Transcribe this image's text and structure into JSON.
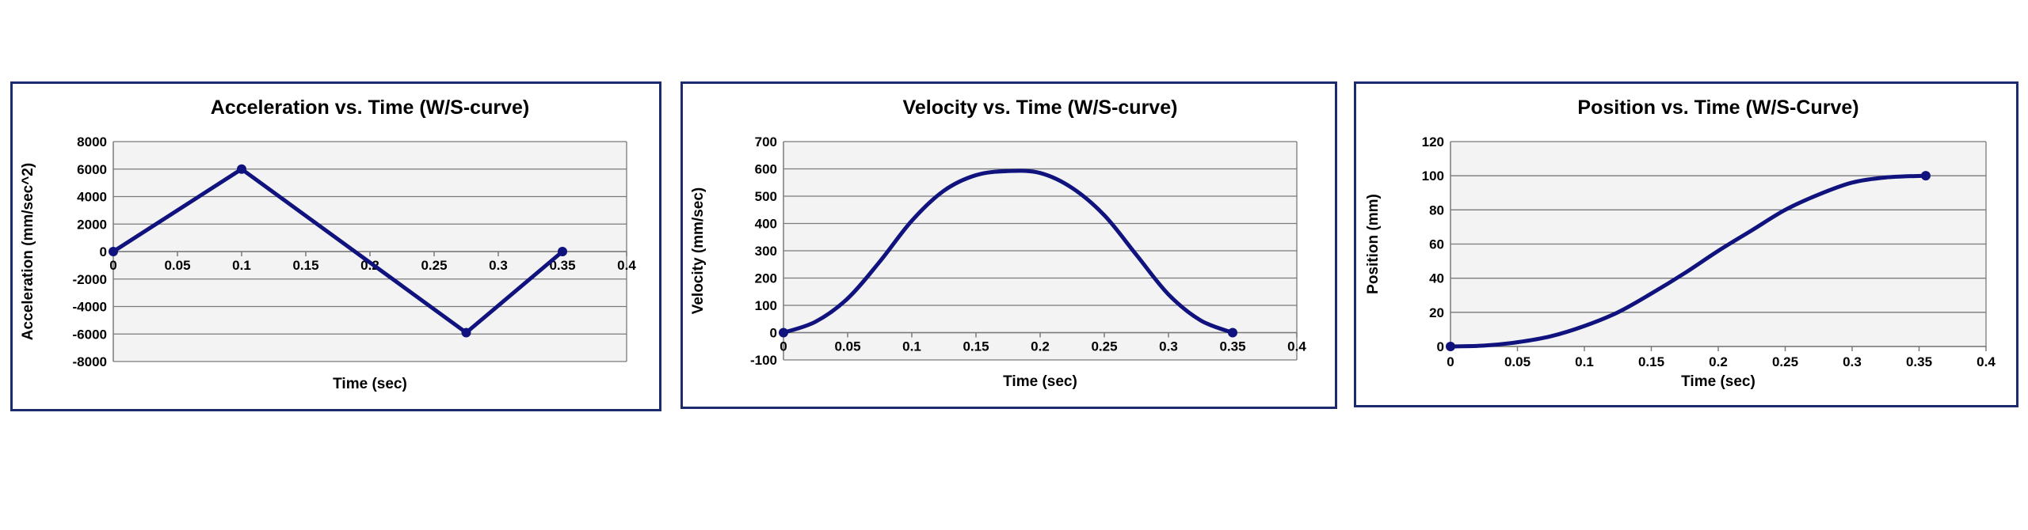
{
  "colors": {
    "series": "#10127e",
    "frame": "#1c2a6e",
    "plot_background": "#f3f3f3",
    "gridline": "#7a7a7a"
  },
  "chart_data": [
    {
      "type": "line",
      "title": "Acceleration vs. Time (W/S-curve)",
      "xlabel": "Time (sec)",
      "ylabel": "Acceleration (mm/sec^2)",
      "xlim": [
        0,
        0.4
      ],
      "ylim": [
        -8000,
        8000
      ],
      "xticks": [
        0,
        0.05,
        0.1,
        0.15,
        0.2,
        0.25,
        0.3,
        0.35,
        0.4
      ],
      "yticks": [
        -8000,
        -6000,
        -4000,
        -2000,
        0,
        2000,
        4000,
        6000,
        8000
      ],
      "xtick_labels": [
        "0",
        "0.05",
        "0.1",
        "0.15",
        "0.2",
        "0.25",
        "0.3",
        "0.35",
        "0.4"
      ],
      "ytick_labels": [
        "-8000",
        "-6000",
        "-4000",
        "-2000",
        "0",
        "2000",
        "4000",
        "6000",
        "8000"
      ],
      "x_tick_position": "at-zero-line",
      "grid": true,
      "legend": "none",
      "series": [
        {
          "x": [
            0,
            0.1,
            0.275,
            0.35
          ],
          "y": [
            0,
            6000,
            -5900,
            0
          ],
          "markers": [
            0,
            1,
            2,
            3
          ]
        }
      ]
    },
    {
      "type": "line",
      "title": "Velocity vs. Time (W/S-curve)",
      "xlabel": "Time (sec)",
      "ylabel": "Velocity (mm/sec)",
      "xlim": [
        0,
        0.4
      ],
      "ylim": [
        -100,
        700
      ],
      "xticks": [
        0,
        0.05,
        0.1,
        0.15,
        0.2,
        0.25,
        0.3,
        0.35,
        0.4
      ],
      "yticks": [
        -100,
        0,
        100,
        200,
        300,
        400,
        500,
        600,
        700
      ],
      "xtick_labels": [
        "0",
        "0.05",
        "0.1",
        "0.15",
        "0.2",
        "0.25",
        "0.3",
        "0.35",
        "0.4"
      ],
      "ytick_labels": [
        "-100",
        "0",
        "100",
        "200",
        "300",
        "400",
        "500",
        "600",
        "700"
      ],
      "x_tick_position": "at-zero-line",
      "grid": true,
      "legend": "none",
      "series": [
        {
          "x": [
            0,
            0.025,
            0.05,
            0.075,
            0.1,
            0.125,
            0.15,
            0.175,
            0.2,
            0.225,
            0.25,
            0.275,
            0.3,
            0.325,
            0.35
          ],
          "y": [
            0,
            40,
            125,
            260,
            410,
            520,
            577,
            592,
            585,
            530,
            430,
            285,
            140,
            45,
            0
          ],
          "markers": [
            0,
            14
          ]
        }
      ]
    },
    {
      "type": "line",
      "title": "Position vs. Time (W/S-Curve)",
      "xlabel": "Time (sec)",
      "ylabel": "Position (mm)",
      "xlim": [
        0,
        0.4
      ],
      "ylim": [
        0,
        120
      ],
      "xticks": [
        0,
        0.05,
        0.1,
        0.15,
        0.2,
        0.25,
        0.3,
        0.35,
        0.4
      ],
      "yticks": [
        0,
        20,
        40,
        60,
        80,
        100,
        120
      ],
      "xtick_labels": [
        "0",
        "0.05",
        "0.1",
        "0.15",
        "0.2",
        "0.25",
        "0.3",
        "0.35",
        "0.4"
      ],
      "ytick_labels": [
        "0",
        "20",
        "40",
        "60",
        "80",
        "100",
        "120"
      ],
      "x_tick_position": "below-axis",
      "grid": true,
      "legend": "none",
      "series": [
        {
          "x": [
            0,
            0.025,
            0.05,
            0.075,
            0.1,
            0.125,
            0.15,
            0.175,
            0.2,
            0.225,
            0.25,
            0.275,
            0.3,
            0.325,
            0.355
          ],
          "y": [
            0,
            0.5,
            2.5,
            6,
            12,
            20,
            31,
            43,
            56,
            68,
            80,
            89,
            96,
            99,
            100
          ],
          "markers": [
            0,
            14
          ]
        }
      ]
    }
  ]
}
